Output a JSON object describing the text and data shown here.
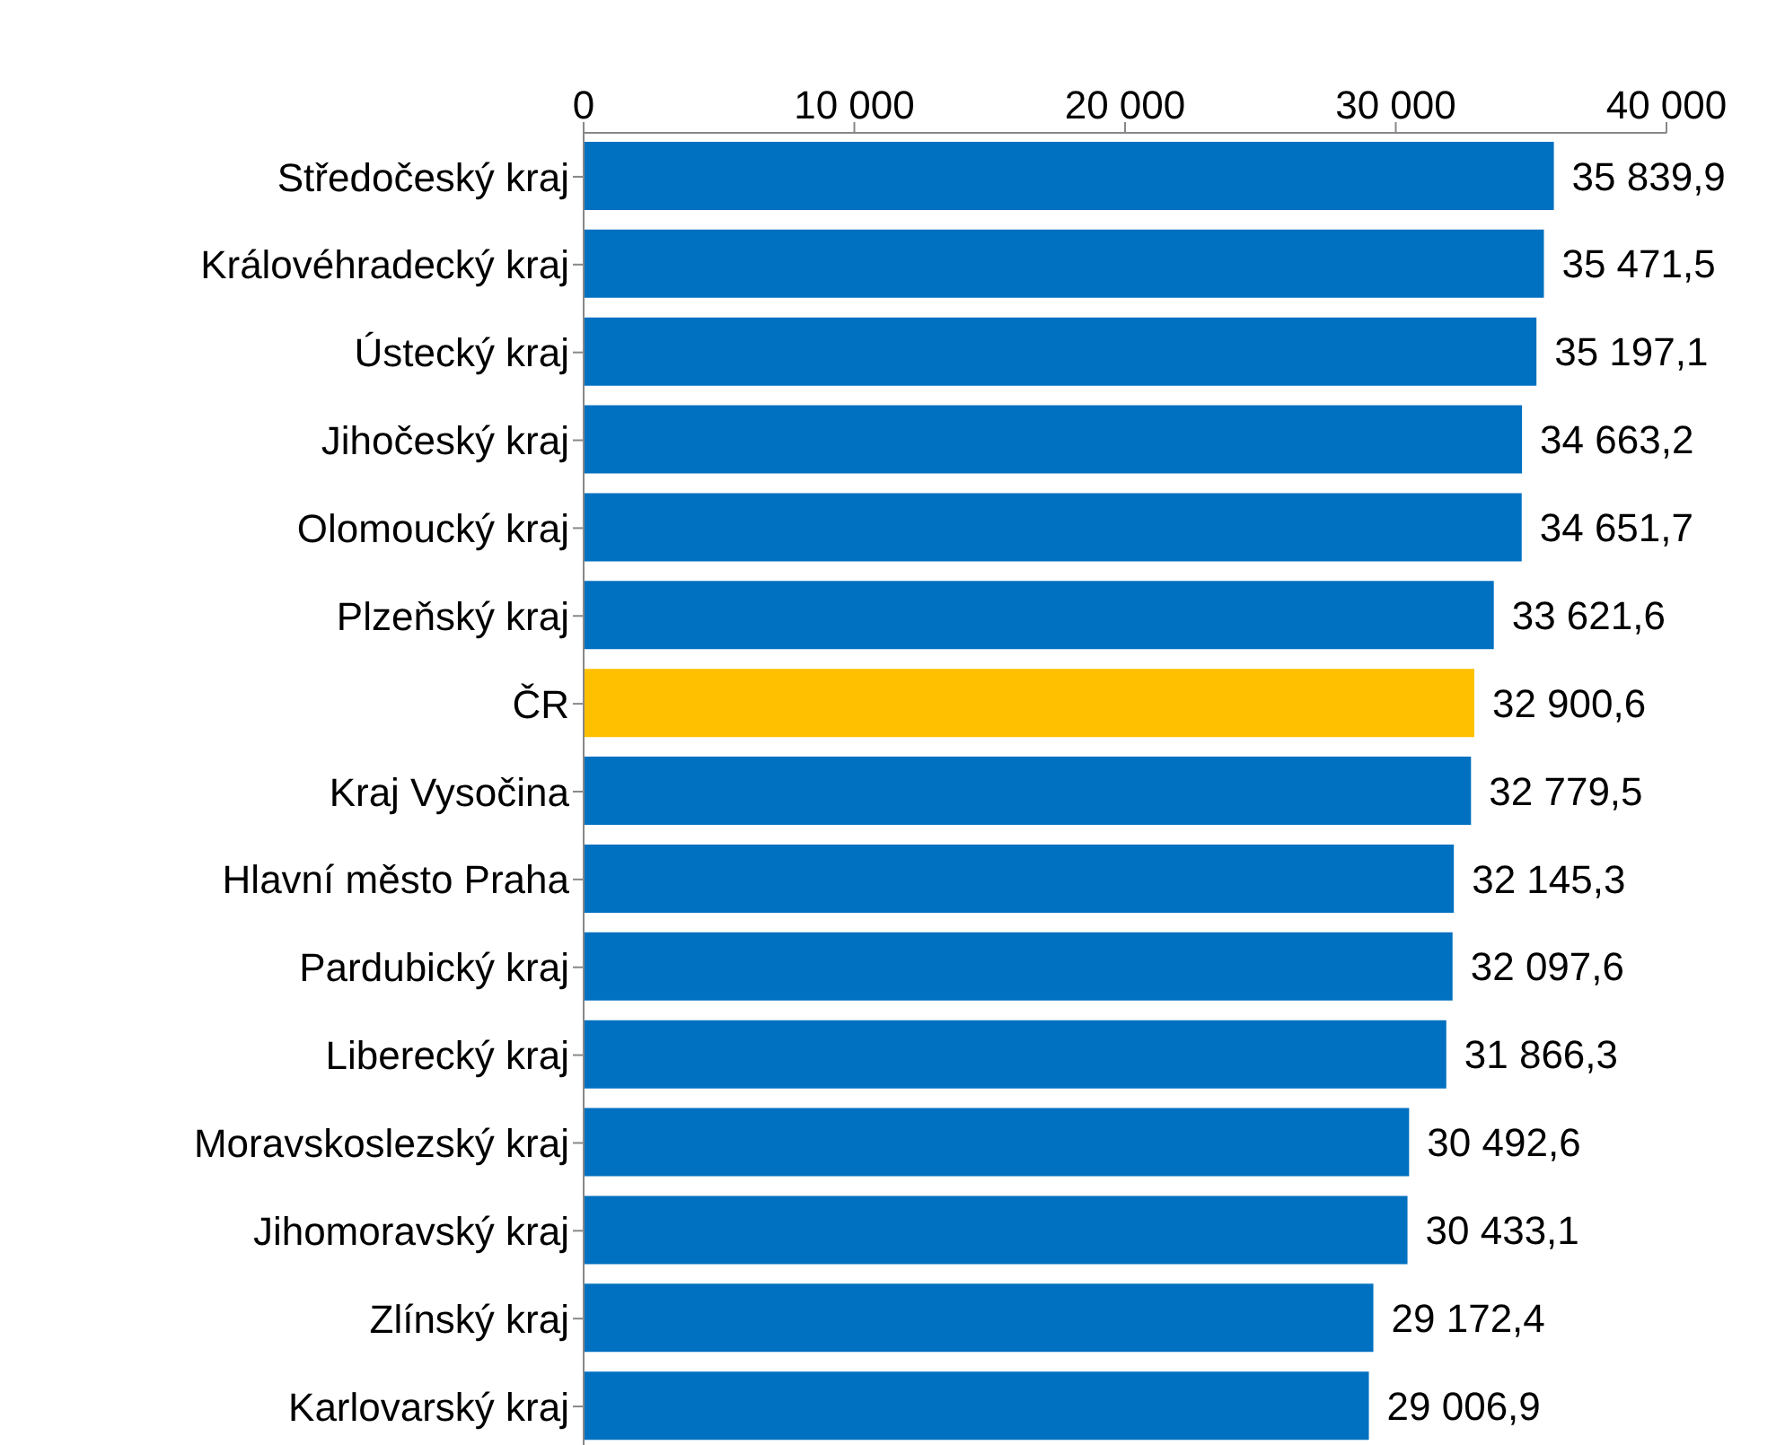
{
  "chart_data": {
    "type": "bar",
    "orientation": "horizontal",
    "categories": [
      "Středočeský kraj",
      "Královéhradecký kraj",
      "Ústecký kraj",
      "Jihočeský kraj",
      "Olomoucký kraj",
      "Plzeňský kraj",
      "ČR",
      "Kraj Vysočina",
      "Hlavní město Praha",
      "Pardubický kraj",
      "Liberecký kraj",
      "Moravskoslezský kraj",
      "Jihomoravský kraj",
      "Zlínský kraj",
      "Karlovarský kraj"
    ],
    "values": [
      35839.9,
      35471.5,
      35197.1,
      34663.2,
      34651.7,
      33621.6,
      32900.6,
      32779.5,
      32145.3,
      32097.6,
      31866.3,
      30492.6,
      30433.1,
      29172.4,
      29006.9
    ],
    "colors": [
      "#0070c0",
      "#0070c0",
      "#0070c0",
      "#0070c0",
      "#0070c0",
      "#0070c0",
      "#ffc000",
      "#0070c0",
      "#0070c0",
      "#0070c0",
      "#0070c0",
      "#0070c0",
      "#0070c0",
      "#0070c0",
      "#0070c0"
    ],
    "value_labels": [
      "35 839,9",
      "35 471,5",
      "35 197,1",
      "34 663,2",
      "34 651,7",
      "33 621,6",
      "32 900,6",
      "32 779,5",
      "32 145,3",
      "32 097,6",
      "31 866,3",
      "30 492,6",
      "30 433,1",
      "29 172,4",
      "29 006,9"
    ],
    "xlim": [
      0,
      40000
    ],
    "xticks": [
      0,
      {
        "value": 10000,
        "label": "10 000"
      },
      {
        "value": 20000,
        "label": "20 000"
      },
      {
        "value": 30000,
        "label": "30 000"
      },
      {
        "value": 40000,
        "label": "40 000"
      }
    ]
  }
}
